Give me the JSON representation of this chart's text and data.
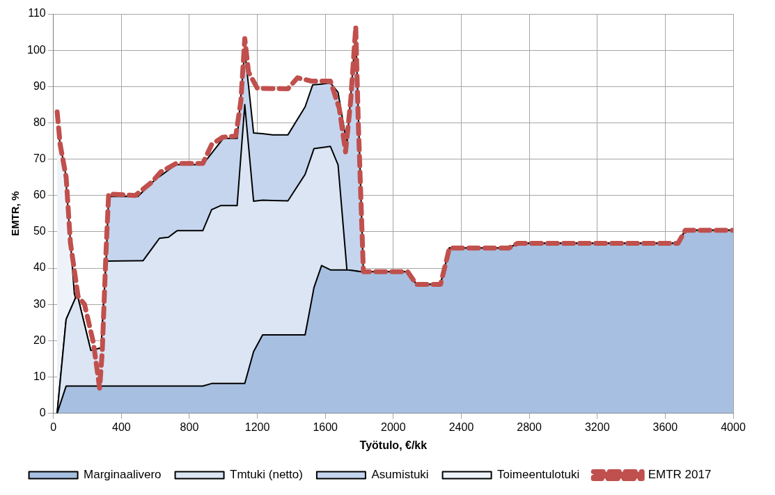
{
  "chart_data": {
    "type": "area",
    "xlabel": "Työtulo, €/kk",
    "ylabel": "EMTR, %",
    "stacked": true,
    "x": [
      22,
      70,
      75,
      123,
      130,
      145,
      220,
      280,
      300,
      310,
      325,
      497,
      527,
      602,
      624,
      677,
      722,
      729,
      879,
      931,
      984,
      999,
      1081,
      1126,
      1178,
      1231,
      1290,
      1380,
      1481,
      1526,
      1533,
      1578,
      1630,
      1675,
      1727,
      1779,
      1809,
      1824,
      2084,
      2136,
      2278,
      2330,
      2679,
      2730,
      3675,
      3718,
      4000
    ],
    "series": [
      {
        "name": "Marginaalivero",
        "color": "#a7bfe0",
        "values": [
          0,
          6.8,
          7.5,
          7.5,
          7.5,
          7.5,
          7.5,
          7.5,
          7.5,
          7.5,
          7.5,
          7.5,
          7.5,
          7.5,
          7.5,
          7.5,
          7.5,
          7.5,
          7.5,
          8.2,
          8.2,
          8.2,
          8.2,
          8.2,
          17,
          21.6,
          21.6,
          21.6,
          21.6,
          32.8,
          34.6,
          40.7,
          39.5,
          39.5,
          39.5,
          39.2,
          39,
          39,
          39,
          35.5,
          35.5,
          45.5,
          45.5,
          46.8,
          46.8,
          50.4,
          50.4
        ]
      },
      {
        "name": "Tmtuki (netto)",
        "color": "#dbe5f3",
        "values": [
          0,
          16.7,
          18.4,
          23.5,
          24.3,
          24.3,
          9.8,
          10.5,
          26.4,
          34.4,
          34.4,
          34.5,
          34.5,
          39.3,
          40.7,
          41,
          42.6,
          42.8,
          42.8,
          47.9,
          49,
          49,
          49,
          76.8,
          41.4,
          37.1,
          37,
          36.9,
          44.2,
          39.1,
          38.3,
          32.5,
          34,
          28.9,
          0,
          0,
          0,
          0,
          0,
          0,
          0,
          0,
          0,
          0,
          0,
          0,
          0
        ]
      },
      {
        "name": "Asumistuki",
        "color": "#c5d5ee",
        "values": [
          0,
          0,
          0,
          0,
          0,
          0,
          0,
          0,
          0,
          0,
          17.8,
          17.7,
          19.1,
          17.7,
          17,
          18.5,
          18.4,
          18.2,
          18.2,
          15.5,
          17.6,
          18.5,
          18.5,
          14.9,
          18.8,
          18.3,
          18.1,
          18.2,
          18.6,
          18.6,
          17.6,
          17.5,
          17.5,
          20,
          34.5,
          66,
          22.1,
          0,
          0,
          0,
          0,
          0,
          0,
          0,
          0,
          0,
          0
        ]
      },
      {
        "name": "Toimeentulotuki",
        "color": "#eef3fa",
        "values": [
          79,
          42.9,
          37.3,
          2,
          0,
          null,
          null,
          null,
          null,
          null,
          null,
          null,
          null,
          null,
          null,
          null,
          null,
          null,
          null,
          null,
          null,
          null,
          null,
          null,
          null,
          null,
          null,
          null,
          null,
          null,
          null,
          null,
          null,
          null,
          null,
          null,
          null,
          null,
          null,
          null,
          null,
          null,
          null,
          null,
          null,
          null,
          null
        ]
      },
      {
        "name": "EMTR 2017",
        "type": "line",
        "line_style": "dashed",
        "color": "#c0504d",
        "x": [
          22,
          40,
          75,
          100,
          145,
          183,
          235,
          272,
          287,
          310,
          325,
          482,
          580,
          632,
          722,
          879,
          931,
          994,
          1073,
          1103,
          1126,
          1148,
          1200,
          1380,
          1436,
          1518,
          1630,
          1682,
          1719,
          1749,
          1779,
          1794,
          1824,
          2084,
          2136,
          2278,
          2330,
          2679,
          2730,
          3675,
          3718,
          4000
        ],
        "values": [
          83,
          74,
          65,
          47,
          32.2,
          30,
          19.5,
          6.9,
          16.6,
          45,
          60.4,
          60,
          63.7,
          66.5,
          68.8,
          68.8,
          74,
          76,
          76.4,
          86,
          103.2,
          94,
          89.5,
          89.4,
          92.4,
          91.5,
          91.5,
          84,
          72,
          86,
          106.5,
          80,
          39,
          39,
          35.5,
          35.5,
          45.5,
          45.5,
          46.8,
          46.8,
          50.4,
          50.4
        ]
      }
    ],
    "xlim": [
      0,
      4000
    ],
    "xticks": [
      0,
      400,
      800,
      1200,
      1600,
      2000,
      2400,
      2800,
      3200,
      3600,
      4000
    ],
    "ylim": [
      0,
      110
    ],
    "yticks": [
      0,
      10,
      20,
      30,
      40,
      50,
      60,
      70,
      80,
      90,
      100,
      110
    ],
    "grid": true,
    "legend": "bottom",
    "marker": "none"
  }
}
